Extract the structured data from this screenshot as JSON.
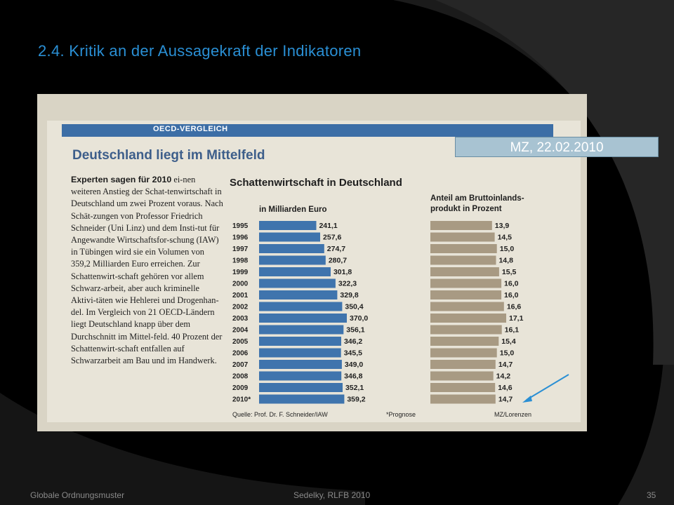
{
  "slide": {
    "title": "2.4. Kritik an der Aussagekraft der Indikatoren",
    "source_tag": "MZ, 22.02.2010",
    "footer_left": "Globale Ordnungsmuster",
    "footer_center": "Sedelky, RLFB 2010",
    "page_number": "35",
    "accent_color": "#2a8fd4"
  },
  "clipping": {
    "section_label": "OECD-VERGLEICH",
    "headline": "Deutschland liegt im Mittelfeld",
    "article_lead": "Experten sagen für 2010",
    "article_body": "ei-nen weiteren Anstieg der Schat-tenwirtschaft in Deutschland um zwei Prozent voraus. Nach Schät-zungen von Professor Friedrich Schneider (Uni Linz) und dem Insti-tut für Angewandte Wirtschaftsfor-schung (IAW) in Tübingen wird sie ein Volumen von 359,2 Milliarden Euro erreichen. Zur Schattenwirt-schaft gehören vor allem Schwarz-arbeit, aber auch kriminelle Aktivi-täten wie Hehlerei und Drogenhan-del. Im Vergleich von 21 OECD-Ländern liegt Deutschland knapp über dem Durchschnitt im Mittel-feld. 40 Prozent der Schattenwirt-schaft entfallen auf Schwarzarbeit am Bau und im Handwerk.",
    "source": "Quelle: Prof. Dr. F. Schneider/IAW",
    "prognose_note": "*Prognose",
    "credit": "MZ/Lorenzen"
  },
  "chart_data": {
    "type": "bar",
    "title": "Schattenwirtschaft in Deutschland",
    "categories": [
      "1995",
      "1996",
      "1997",
      "1998",
      "1999",
      "2000",
      "2001",
      "2002",
      "2003",
      "2004",
      "2005",
      "2006",
      "2007",
      "2008",
      "2009",
      "2010*"
    ],
    "series": [
      {
        "name": "in Milliarden Euro",
        "values": [
          241.1,
          257.6,
          274.7,
          280.7,
          301.8,
          322.3,
          329.8,
          350.4,
          370.0,
          356.1,
          346.2,
          345.5,
          349.0,
          346.8,
          352.1,
          359.2
        ],
        "labels": [
          "241,1",
          "257,6",
          "274,7",
          "280,7",
          "301,8",
          "322,3",
          "329,8",
          "350,4",
          "370,0",
          "356,1",
          "346,2",
          "345,5",
          "349,0",
          "346,8",
          "352,1",
          "359,2"
        ],
        "color": "#3f74ad"
      },
      {
        "name": "Anteil am Bruttoinlands-produkt in Prozent",
        "values": [
          13.9,
          14.5,
          15.0,
          14.8,
          15.5,
          16.0,
          16.0,
          16.6,
          17.1,
          16.1,
          15.4,
          15.0,
          14.7,
          14.2,
          14.6,
          14.7
        ],
        "labels": [
          "13,9",
          "14,5",
          "15,0",
          "14,8",
          "15,5",
          "16,0",
          "16,0",
          "16,6",
          "17,1",
          "16,1",
          "15,4",
          "15,0",
          "14,7",
          "14,2",
          "14,6",
          "14,7"
        ],
        "color": "#a89a83"
      }
    ],
    "xlabel": "",
    "ylabel": ""
  }
}
